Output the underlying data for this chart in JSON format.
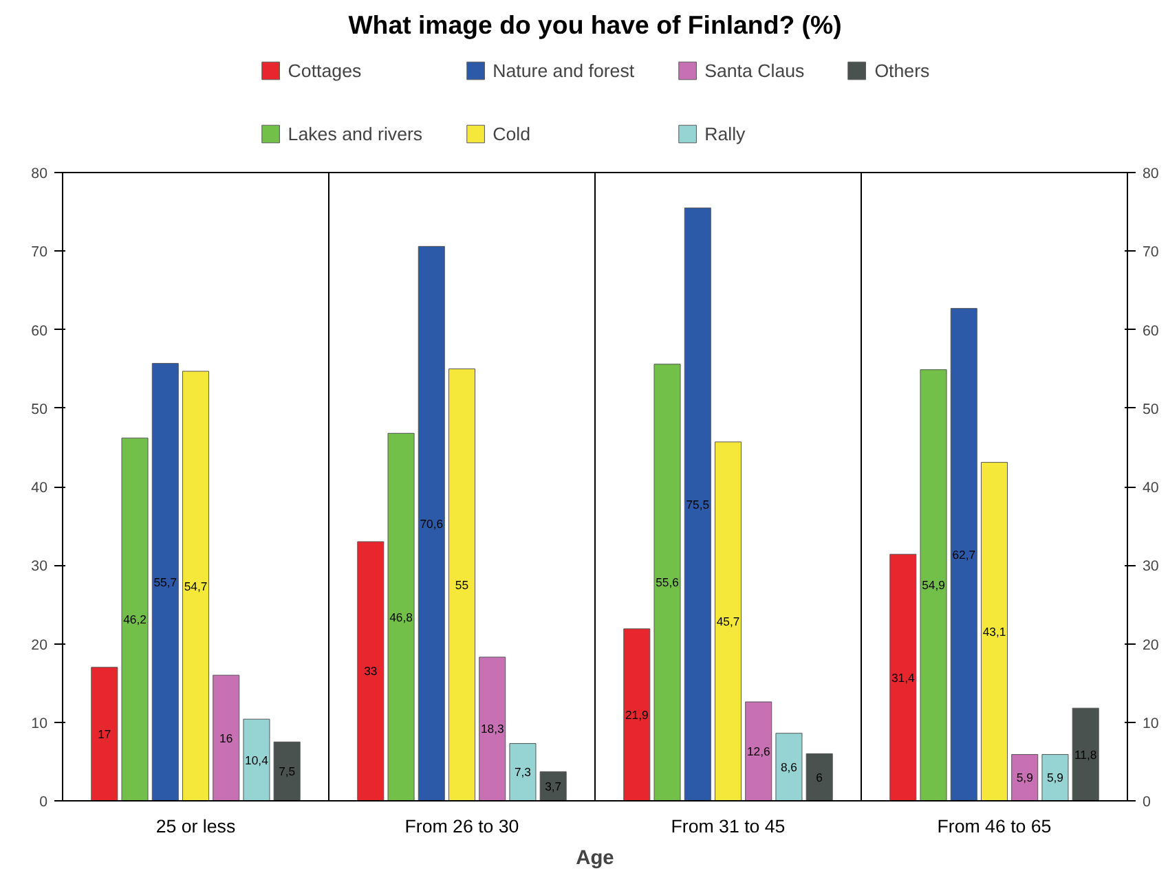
{
  "chart_data": {
    "type": "bar",
    "title": "What image do you have of Finland? (%)",
    "xlabel": "Age",
    "categories": [
      "25 or less",
      "From 26 to 30",
      "From 31 to 45",
      "From 46 to 65"
    ],
    "series": [
      {
        "name": "Cottages",
        "color": "#e8262e",
        "values": [
          17,
          33,
          21.9,
          31.4
        ],
        "value_labels": [
          "17",
          "33",
          "21,9",
          "31,4"
        ]
      },
      {
        "name": "Lakes and rivers",
        "color": "#72c04a",
        "values": [
          46.2,
          46.8,
          55.6,
          54.9
        ],
        "value_labels": [
          "46,2",
          "46,8",
          "55,6",
          "54,9"
        ]
      },
      {
        "name": "Nature and forest",
        "color": "#2d5aa8",
        "values": [
          55.7,
          70.6,
          75.5,
          62.7
        ],
        "value_labels": [
          "55,7",
          "70,6",
          "75,5",
          "62,7"
        ]
      },
      {
        "name": "Cold",
        "color": "#f5e83a",
        "values": [
          54.7,
          55,
          45.7,
          43.1
        ],
        "value_labels": [
          "54,7",
          "55",
          "45,7",
          "43,1"
        ]
      },
      {
        "name": "Santa Claus",
        "color": "#c870b4",
        "values": [
          16,
          18.3,
          12.6,
          5.9
        ],
        "value_labels": [
          "16",
          "18,3",
          "12,6",
          "5,9"
        ]
      },
      {
        "name": "Rally",
        "color": "#96d4d4",
        "values": [
          10.4,
          7.3,
          8.6,
          5.9
        ],
        "value_labels": [
          "10,4",
          "7,3",
          "8,6",
          "5,9"
        ]
      },
      {
        "name": "Others",
        "color": "#4a5250",
        "values": [
          7.5,
          3.7,
          6,
          11.8
        ],
        "value_labels": [
          "7,5",
          "3,7",
          "6",
          "11,8"
        ]
      }
    ],
    "ylim": [
      0,
      80
    ],
    "yticks": [
      0,
      10,
      20,
      30,
      40,
      50,
      60,
      70,
      80
    ],
    "y2lim": [
      0,
      80
    ],
    "y2ticks": [
      0,
      10,
      20,
      30,
      40,
      50,
      60,
      70,
      80
    ],
    "grid": "x",
    "legend": "top"
  }
}
